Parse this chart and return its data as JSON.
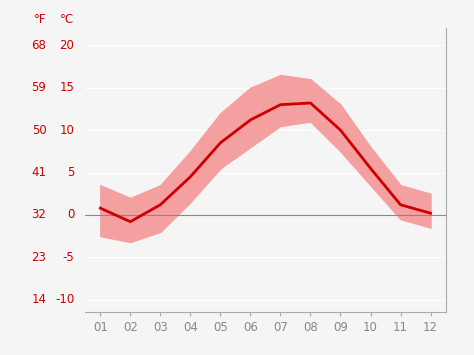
{
  "months": [
    1,
    2,
    3,
    4,
    5,
    6,
    7,
    8,
    9,
    10,
    11,
    12
  ],
  "month_labels": [
    "01",
    "02",
    "03",
    "04",
    "05",
    "06",
    "07",
    "08",
    "09",
    "10",
    "11",
    "12"
  ],
  "mean_temp_c": [
    0.8,
    -0.8,
    1.2,
    4.5,
    8.5,
    11.2,
    13.0,
    13.2,
    10.0,
    5.5,
    1.2,
    0.2
  ],
  "upper_band_c": [
    3.5,
    2.0,
    3.5,
    7.5,
    12.0,
    15.0,
    16.5,
    16.0,
    13.0,
    8.0,
    3.5,
    2.5
  ],
  "lower_band_c": [
    -2.5,
    -3.2,
    -2.0,
    1.5,
    5.5,
    8.0,
    10.5,
    11.0,
    7.5,
    3.5,
    -0.5,
    -1.5
  ],
  "line_color": "#cc0000",
  "band_color": "#f4a0a0",
  "zero_line_color": "#888888",
  "tick_values_c": [
    20,
    15,
    10,
    5,
    0,
    -5,
    -10
  ],
  "tick_labels_f": [
    "68",
    "59",
    "50",
    "41",
    "32",
    "23",
    "14"
  ],
  "tick_labels_c": [
    "20",
    "15",
    "10",
    "5",
    "0",
    "-5",
    "-10"
  ],
  "ylim_c": [
    -11.5,
    22.0
  ],
  "background_color": "#f5f5f5",
  "text_color": "#cc0000",
  "grid_color": "#dddddd",
  "axis_line_color": "#aaaaaa",
  "fontsize": 8.5,
  "xlabel_color": "#888888",
  "label_f": "°F",
  "label_c": "°C"
}
